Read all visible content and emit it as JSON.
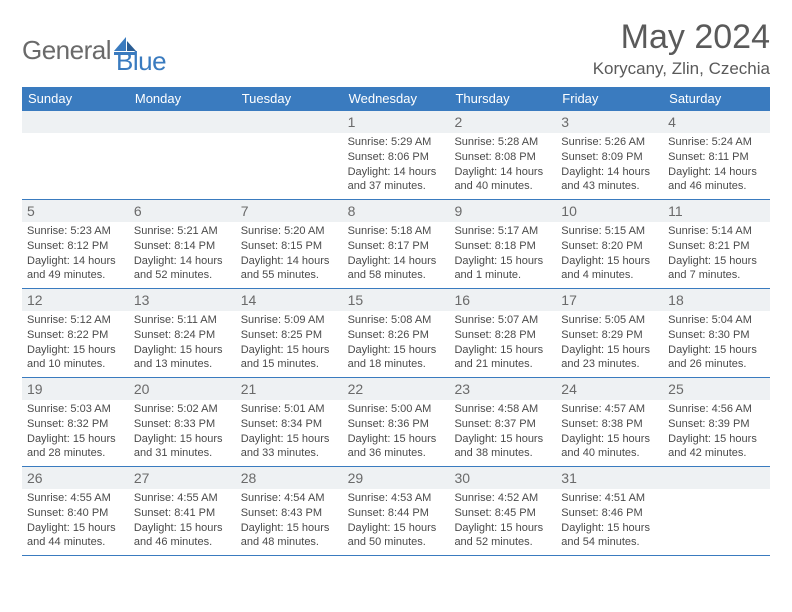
{
  "logo": {
    "text1": "General",
    "text2": "Blue",
    "color_general": "#6a6a6a",
    "color_blue": "#3a7bbf"
  },
  "title": "May 2024",
  "subtitle": "Korycany, Zlin, Czechia",
  "day_headers": [
    "Sunday",
    "Monday",
    "Tuesday",
    "Wednesday",
    "Thursday",
    "Friday",
    "Saturday"
  ],
  "colors": {
    "header_bg": "#3a7bbf",
    "header_text": "#ffffff",
    "daynum_bg": "#eef1f3",
    "border": "#3a7bbf",
    "text": "#4a4a4a",
    "title": "#5a5a5a"
  },
  "weeks": [
    [
      {
        "blank": true
      },
      {
        "blank": true
      },
      {
        "blank": true
      },
      {
        "day": "1",
        "sunrise": "Sunrise: 5:29 AM",
        "sunset": "Sunset: 8:06 PM",
        "dl1": "Daylight: 14 hours",
        "dl2": "and 37 minutes."
      },
      {
        "day": "2",
        "sunrise": "Sunrise: 5:28 AM",
        "sunset": "Sunset: 8:08 PM",
        "dl1": "Daylight: 14 hours",
        "dl2": "and 40 minutes."
      },
      {
        "day": "3",
        "sunrise": "Sunrise: 5:26 AM",
        "sunset": "Sunset: 8:09 PM",
        "dl1": "Daylight: 14 hours",
        "dl2": "and 43 minutes."
      },
      {
        "day": "4",
        "sunrise": "Sunrise: 5:24 AM",
        "sunset": "Sunset: 8:11 PM",
        "dl1": "Daylight: 14 hours",
        "dl2": "and 46 minutes."
      }
    ],
    [
      {
        "day": "5",
        "sunrise": "Sunrise: 5:23 AM",
        "sunset": "Sunset: 8:12 PM",
        "dl1": "Daylight: 14 hours",
        "dl2": "and 49 minutes."
      },
      {
        "day": "6",
        "sunrise": "Sunrise: 5:21 AM",
        "sunset": "Sunset: 8:14 PM",
        "dl1": "Daylight: 14 hours",
        "dl2": "and 52 minutes."
      },
      {
        "day": "7",
        "sunrise": "Sunrise: 5:20 AM",
        "sunset": "Sunset: 8:15 PM",
        "dl1": "Daylight: 14 hours",
        "dl2": "and 55 minutes."
      },
      {
        "day": "8",
        "sunrise": "Sunrise: 5:18 AM",
        "sunset": "Sunset: 8:17 PM",
        "dl1": "Daylight: 14 hours",
        "dl2": "and 58 minutes."
      },
      {
        "day": "9",
        "sunrise": "Sunrise: 5:17 AM",
        "sunset": "Sunset: 8:18 PM",
        "dl1": "Daylight: 15 hours",
        "dl2": "and 1 minute."
      },
      {
        "day": "10",
        "sunrise": "Sunrise: 5:15 AM",
        "sunset": "Sunset: 8:20 PM",
        "dl1": "Daylight: 15 hours",
        "dl2": "and 4 minutes."
      },
      {
        "day": "11",
        "sunrise": "Sunrise: 5:14 AM",
        "sunset": "Sunset: 8:21 PM",
        "dl1": "Daylight: 15 hours",
        "dl2": "and 7 minutes."
      }
    ],
    [
      {
        "day": "12",
        "sunrise": "Sunrise: 5:12 AM",
        "sunset": "Sunset: 8:22 PM",
        "dl1": "Daylight: 15 hours",
        "dl2": "and 10 minutes."
      },
      {
        "day": "13",
        "sunrise": "Sunrise: 5:11 AM",
        "sunset": "Sunset: 8:24 PM",
        "dl1": "Daylight: 15 hours",
        "dl2": "and 13 minutes."
      },
      {
        "day": "14",
        "sunrise": "Sunrise: 5:09 AM",
        "sunset": "Sunset: 8:25 PM",
        "dl1": "Daylight: 15 hours",
        "dl2": "and 15 minutes."
      },
      {
        "day": "15",
        "sunrise": "Sunrise: 5:08 AM",
        "sunset": "Sunset: 8:26 PM",
        "dl1": "Daylight: 15 hours",
        "dl2": "and 18 minutes."
      },
      {
        "day": "16",
        "sunrise": "Sunrise: 5:07 AM",
        "sunset": "Sunset: 8:28 PM",
        "dl1": "Daylight: 15 hours",
        "dl2": "and 21 minutes."
      },
      {
        "day": "17",
        "sunrise": "Sunrise: 5:05 AM",
        "sunset": "Sunset: 8:29 PM",
        "dl1": "Daylight: 15 hours",
        "dl2": "and 23 minutes."
      },
      {
        "day": "18",
        "sunrise": "Sunrise: 5:04 AM",
        "sunset": "Sunset: 8:30 PM",
        "dl1": "Daylight: 15 hours",
        "dl2": "and 26 minutes."
      }
    ],
    [
      {
        "day": "19",
        "sunrise": "Sunrise: 5:03 AM",
        "sunset": "Sunset: 8:32 PM",
        "dl1": "Daylight: 15 hours",
        "dl2": "and 28 minutes."
      },
      {
        "day": "20",
        "sunrise": "Sunrise: 5:02 AM",
        "sunset": "Sunset: 8:33 PM",
        "dl1": "Daylight: 15 hours",
        "dl2": "and 31 minutes."
      },
      {
        "day": "21",
        "sunrise": "Sunrise: 5:01 AM",
        "sunset": "Sunset: 8:34 PM",
        "dl1": "Daylight: 15 hours",
        "dl2": "and 33 minutes."
      },
      {
        "day": "22",
        "sunrise": "Sunrise: 5:00 AM",
        "sunset": "Sunset: 8:36 PM",
        "dl1": "Daylight: 15 hours",
        "dl2": "and 36 minutes."
      },
      {
        "day": "23",
        "sunrise": "Sunrise: 4:58 AM",
        "sunset": "Sunset: 8:37 PM",
        "dl1": "Daylight: 15 hours",
        "dl2": "and 38 minutes."
      },
      {
        "day": "24",
        "sunrise": "Sunrise: 4:57 AM",
        "sunset": "Sunset: 8:38 PM",
        "dl1": "Daylight: 15 hours",
        "dl2": "and 40 minutes."
      },
      {
        "day": "25",
        "sunrise": "Sunrise: 4:56 AM",
        "sunset": "Sunset: 8:39 PM",
        "dl1": "Daylight: 15 hours",
        "dl2": "and 42 minutes."
      }
    ],
    [
      {
        "day": "26",
        "sunrise": "Sunrise: 4:55 AM",
        "sunset": "Sunset: 8:40 PM",
        "dl1": "Daylight: 15 hours",
        "dl2": "and 44 minutes."
      },
      {
        "day": "27",
        "sunrise": "Sunrise: 4:55 AM",
        "sunset": "Sunset: 8:41 PM",
        "dl1": "Daylight: 15 hours",
        "dl2": "and 46 minutes."
      },
      {
        "day": "28",
        "sunrise": "Sunrise: 4:54 AM",
        "sunset": "Sunset: 8:43 PM",
        "dl1": "Daylight: 15 hours",
        "dl2": "and 48 minutes."
      },
      {
        "day": "29",
        "sunrise": "Sunrise: 4:53 AM",
        "sunset": "Sunset: 8:44 PM",
        "dl1": "Daylight: 15 hours",
        "dl2": "and 50 minutes."
      },
      {
        "day": "30",
        "sunrise": "Sunrise: 4:52 AM",
        "sunset": "Sunset: 8:45 PM",
        "dl1": "Daylight: 15 hours",
        "dl2": "and 52 minutes."
      },
      {
        "day": "31",
        "sunrise": "Sunrise: 4:51 AM",
        "sunset": "Sunset: 8:46 PM",
        "dl1": "Daylight: 15 hours",
        "dl2": "and 54 minutes."
      },
      {
        "blank": true
      }
    ]
  ]
}
